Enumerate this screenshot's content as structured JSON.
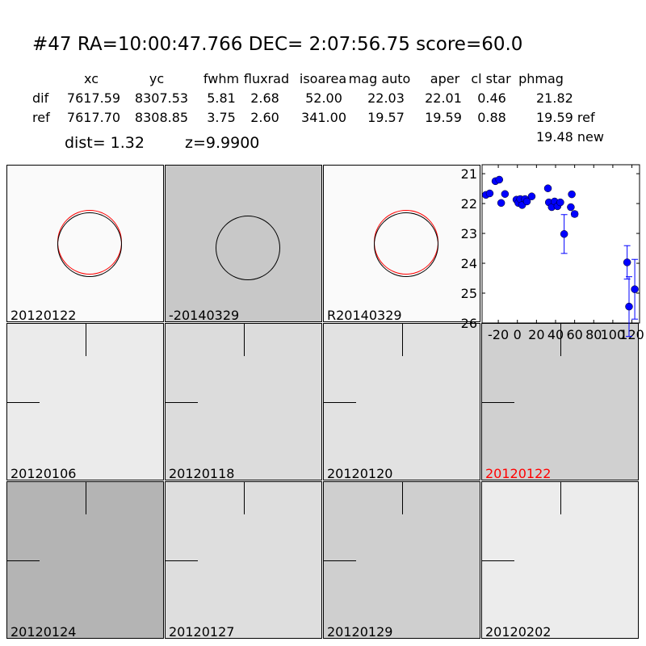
{
  "header": {
    "title": "#47   RA=10:00:47.766 DEC= 2:07:56.75      score=60.0"
  },
  "table": {
    "columns": [
      "xc",
      "yc",
      "fwhm",
      "fluxrad",
      "isoarea",
      "mag auto",
      "aper",
      "cl star",
      "phmag"
    ],
    "rows": [
      {
        "label": "dif",
        "values": [
          "7617.59",
          "8307.53",
          "5.81",
          "2.68",
          "52.00",
          "22.03",
          "22.01",
          "0.46",
          "21.82"
        ]
      },
      {
        "label": "ref",
        "values": [
          "7617.70",
          "8308.85",
          "3.75",
          "2.60",
          "341.00",
          "19.57",
          "19.59",
          "0.88",
          "19.59 ref"
        ]
      }
    ],
    "extra_phmag": "19.48 new",
    "dist": "dist=  1.32",
    "z": "z=9.9900"
  },
  "stamps": [
    {
      "label": "20120122",
      "bg": "#fafafa",
      "blob": "#111",
      "circles": true
    },
    {
      "label": "-20140329",
      "bg": "#c8c8c8",
      "blob": "#111",
      "circles": "black"
    },
    {
      "label": "R20140329",
      "bg": "#fafafa",
      "blob": "#111",
      "circles": true
    },
    {
      "label": "20120106",
      "bg": "#ebebeb",
      "blob": "#222"
    },
    {
      "label": "20120118",
      "bg": "#dcdcdc",
      "blob": "#111"
    },
    {
      "label": "20120120",
      "bg": "#e2e2e2",
      "blob": "#111"
    },
    {
      "label": "20120122",
      "bg": "#d0d0d0",
      "blob": "#111",
      "label_color": "#ff0000"
    },
    {
      "label": "20120124",
      "bg": "#b4b4b4",
      "blob": "#111"
    },
    {
      "label": "20120127",
      "bg": "#dedede",
      "blob": "#111"
    },
    {
      "label": "20120129",
      "bg": "#cfcfcf",
      "blob": "#222"
    },
    {
      "label": "20120202",
      "bg": "#ececec",
      "blob": "#222"
    }
  ],
  "colors": {
    "point": "#0000ff",
    "circle_red": "#ff0000",
    "circle_black": "#000000",
    "highlight_label": "#ff0000"
  },
  "chart_data": {
    "type": "scatter",
    "xlim": [
      -37,
      128
    ],
    "ylim": [
      26,
      20.7
    ],
    "y_inverted": true,
    "xticks": [
      "-20",
      "0",
      "20",
      "40",
      "60",
      "80",
      "100",
      "120"
    ],
    "xtick_values": [
      -20,
      0,
      20,
      40,
      60,
      80,
      100,
      120
    ],
    "yticks": [
      "21",
      "22",
      "23",
      "24",
      "25",
      "26"
    ],
    "ytick_values": [
      21,
      22,
      23,
      24,
      25,
      26
    ],
    "points": [
      {
        "x": -33,
        "y": 21.71
      },
      {
        "x": -29,
        "y": 21.66
      },
      {
        "x": -23,
        "y": 21.25
      },
      {
        "x": -19,
        "y": 21.2
      },
      {
        "x": -17,
        "y": 21.98
      },
      {
        "x": -13,
        "y": 21.68
      },
      {
        "x": -1,
        "y": 21.87
      },
      {
        "x": 1,
        "y": 21.98
      },
      {
        "x": 3,
        "y": 21.85
      },
      {
        "x": 5,
        "y": 22.05
      },
      {
        "x": 8,
        "y": 21.85
      },
      {
        "x": 10,
        "y": 21.93
      },
      {
        "x": 15,
        "y": 21.76
      },
      {
        "x": 32,
        "y": 21.49
      },
      {
        "x": 33,
        "y": 21.96,
        "err": 0.05
      },
      {
        "x": 36,
        "y": 22.12,
        "err": 0.05
      },
      {
        "x": 39,
        "y": 21.93,
        "err": 0.05
      },
      {
        "x": 42,
        "y": 22.09,
        "err": 0.05
      },
      {
        "x": 45,
        "y": 21.96,
        "err": 0.05
      },
      {
        "x": 49,
        "y": 23.02,
        "err": 0.65
      },
      {
        "x": 56,
        "y": 22.12
      },
      {
        "x": 57,
        "y": 21.69
      },
      {
        "x": 60,
        "y": 22.35,
        "err": 0.08
      },
      {
        "x": 115,
        "y": 23.97,
        "err": 0.56
      },
      {
        "x": 117,
        "y": 25.45,
        "err": 1.0
      },
      {
        "x": 123,
        "y": 24.87,
        "err": 1.0
      }
    ]
  }
}
